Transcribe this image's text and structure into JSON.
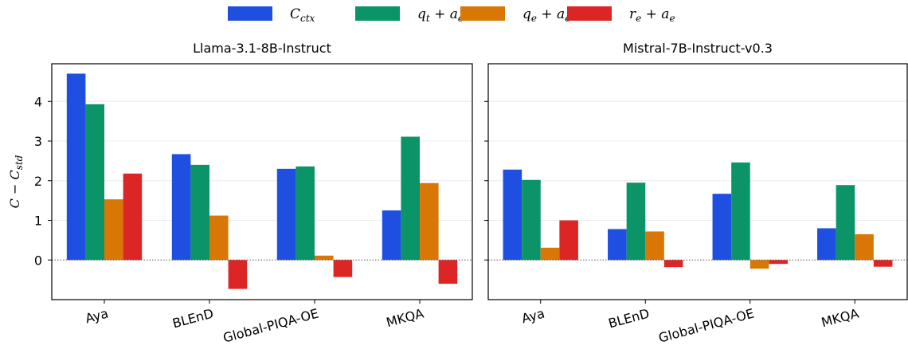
{
  "chart_data": [
    {
      "type": "bar",
      "title": "Llama-3.1-8B-Instruct",
      "ylabel": "C − C_std",
      "ylim": [
        -1.0,
        4.95
      ],
      "yticks": [
        0,
        1,
        2,
        3,
        4
      ],
      "categories": [
        "Aya",
        "BLEnD",
        "Global-PIQA-OE",
        "MKQA"
      ],
      "grid": "horizontal",
      "series": [
        {
          "name": "C_ctx",
          "color": "#1f4fe0",
          "values": [
            4.7,
            2.67,
            2.3,
            1.25
          ]
        },
        {
          "name": "q_t + a_e",
          "color": "#0b9468",
          "values": [
            3.93,
            2.4,
            2.36,
            3.11
          ]
        },
        {
          "name": "q_e + a_e",
          "color": "#d97706",
          "values": [
            1.53,
            1.12,
            0.11,
            1.94
          ]
        },
        {
          "name": "r_e + a_e",
          "color": "#dc2626",
          "values": [
            2.18,
            -0.73,
            -0.43,
            -0.6
          ]
        }
      ]
    },
    {
      "type": "bar",
      "title": "Mistral-7B-Instruct-v0.3",
      "ylim": [
        -1.0,
        4.95
      ],
      "yticks": [
        0,
        1,
        2,
        3,
        4
      ],
      "categories": [
        "Aya",
        "BLEnD",
        "Global-PIQA-OE",
        "MKQA"
      ],
      "grid": "horizontal",
      "series": [
        {
          "name": "C_ctx",
          "color": "#1f4fe0",
          "values": [
            2.28,
            0.78,
            1.67,
            0.8
          ]
        },
        {
          "name": "q_t + a_e",
          "color": "#0b9468",
          "values": [
            2.02,
            1.95,
            2.46,
            1.89
          ]
        },
        {
          "name": "q_e + a_e",
          "color": "#d97706",
          "values": [
            0.31,
            0.72,
            -0.22,
            0.65
          ]
        },
        {
          "name": "r_e + a_e",
          "color": "#dc2626",
          "values": [
            1.0,
            -0.18,
            -0.1,
            -0.17
          ]
        }
      ]
    }
  ],
  "legend": {
    "placement": "top-center",
    "items": [
      {
        "base": "C",
        "sub": "ctx",
        "color": "#1f4fe0"
      },
      {
        "text": "q",
        "sub": "t",
        "rest": " + a",
        "sub2": "e",
        "color": "#0b9468"
      },
      {
        "text": "q",
        "sub": "e",
        "rest": " + a",
        "sub2": "e",
        "color": "#d97706"
      },
      {
        "text": "r",
        "sub": "e",
        "rest": " + a",
        "sub2": "e",
        "color": "#dc2626"
      }
    ]
  }
}
